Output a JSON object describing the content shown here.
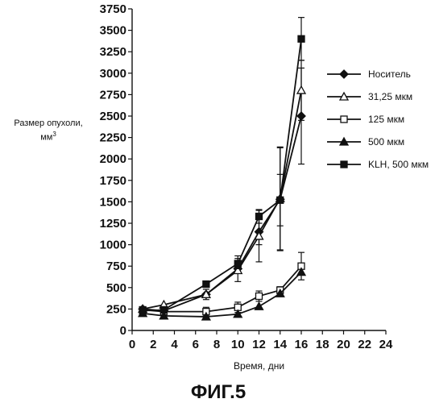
{
  "figure": {
    "caption": "ФИГ.5"
  },
  "chart_data": {
    "type": "line",
    "title": "",
    "xlabel": "Время, дни",
    "ylabel": "Размер опухоли,",
    "yunit_base": "мм",
    "yunit_exp": "3",
    "xlim": [
      0,
      24
    ],
    "ylim": [
      0,
      3750
    ],
    "xticks": [
      0,
      2,
      4,
      6,
      8,
      10,
      12,
      14,
      16,
      18,
      20,
      22,
      24
    ],
    "yticks": [
      0,
      250,
      500,
      750,
      1000,
      1250,
      1500,
      1750,
      2000,
      2250,
      2500,
      2750,
      3000,
      3250,
      3500,
      3750
    ],
    "legend_position": "right",
    "series": [
      {
        "name": "Носитель",
        "marker": "diamond",
        "fill": "filled",
        "x": [
          1,
          3,
          7,
          10,
          12,
          14,
          16
        ],
        "y": [
          250,
          230,
          420,
          720,
          1150,
          1530,
          2500
        ],
        "err": [
          0,
          0,
          60,
          150,
          150,
          600,
          560
        ]
      },
      {
        "name": "31,25 мкм",
        "marker": "triangle",
        "fill": "open",
        "x": [
          1,
          3,
          7,
          10,
          12,
          14,
          16
        ],
        "y": [
          250,
          300,
          420,
          700,
          1100,
          1540,
          2800
        ],
        "err": [
          0,
          0,
          0,
          0,
          300,
          600,
          350
        ]
      },
      {
        "name": "125 мкм",
        "marker": "square",
        "fill": "open",
        "x": [
          1,
          3,
          7,
          10,
          12,
          14,
          16
        ],
        "y": [
          240,
          220,
          220,
          270,
          400,
          470,
          750
        ],
        "err": [
          0,
          0,
          50,
          60,
          60,
          40,
          160
        ]
      },
      {
        "name": "500 мкм",
        "marker": "triangle",
        "fill": "filled",
        "x": [
          1,
          3,
          7,
          10,
          12,
          14,
          16
        ],
        "y": [
          200,
          170,
          160,
          190,
          280,
          430,
          680
        ],
        "err": [
          0,
          0,
          0,
          0,
          0,
          0,
          0
        ]
      },
      {
        "name": "KLH, 500 мкм",
        "marker": "square",
        "fill": "filled",
        "x": [
          1,
          3,
          7,
          10,
          12,
          14,
          16
        ],
        "y": [
          230,
          240,
          540,
          780,
          1330,
          1520,
          3400
        ],
        "err": [
          0,
          0,
          0,
          60,
          80,
          300,
          250
        ]
      }
    ]
  }
}
